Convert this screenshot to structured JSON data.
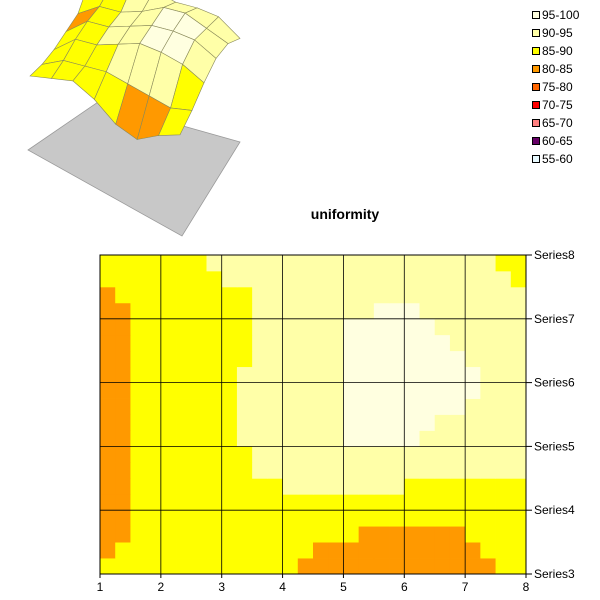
{
  "chart_data": {
    "type": "heatmap",
    "subtype": "contour",
    "title": "uniformity",
    "xlabel": "",
    "ylabel": "",
    "x": [
      1,
      2,
      3,
      4,
      5,
      6,
      7,
      8
    ],
    "series_names": [
      "Series3",
      "Series4",
      "Series5",
      "Series6",
      "Series7",
      "Series8"
    ],
    "grid": true,
    "legend_position": "top-right",
    "bands": [
      {
        "label": "95-100",
        "min": 95,
        "max": 100,
        "color": "#FFFFE0"
      },
      {
        "label": "90-95",
        "min": 90,
        "max": 95,
        "color": "#FFFFA8"
      },
      {
        "label": "85-90",
        "min": 85,
        "max": 90,
        "color": "#FFFF00"
      },
      {
        "label": "80-85",
        "min": 80,
        "max": 85,
        "color": "#FF9900"
      },
      {
        "label": "75-80",
        "min": 75,
        "max": 80,
        "color": "#FF6600"
      },
      {
        "label": "70-75",
        "min": 70,
        "max": 75,
        "color": "#FF0000"
      },
      {
        "label": "65-70",
        "min": 65,
        "max": 70,
        "color": "#FF8080"
      },
      {
        "label": "60-65",
        "min": 60,
        "max": 65,
        "color": "#660066"
      },
      {
        "label": "55-60",
        "min": 55,
        "max": 60,
        "color": "#E8FAFF"
      }
    ],
    "values": [
      [
        85,
        87,
        89,
        86,
        81,
        79,
        83,
        86
      ],
      [
        83,
        87,
        88,
        89,
        88,
        87,
        86,
        88
      ],
      [
        82,
        88,
        89,
        92,
        95,
        95,
        94,
        91
      ],
      [
        82,
        88,
        89,
        92,
        95,
        96,
        96,
        93
      ],
      [
        82,
        87,
        88,
        91,
        95,
        96,
        94,
        92
      ],
      [
        87,
        88,
        91,
        92,
        91,
        92,
        92,
        88
      ]
    ]
  }
}
